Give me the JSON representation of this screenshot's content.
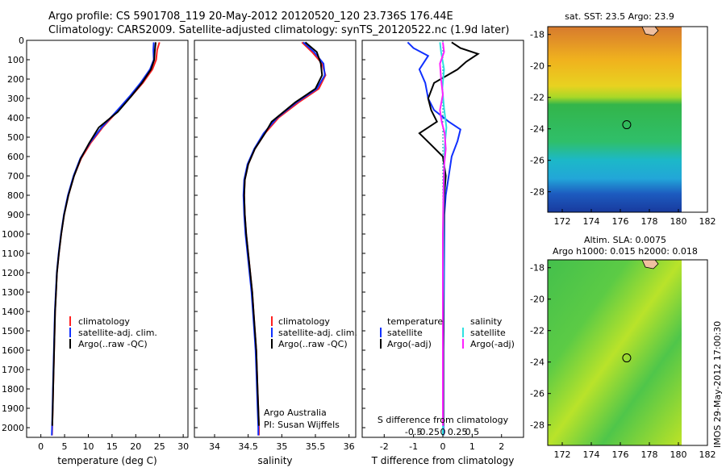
{
  "header": {
    "line1": "Argo profile: CS 5901708_119 20-May-2012 20120520_120 23.736S 176.44E",
    "line2": "Climatology: CARS2009. Satellite-adjusted climatology: synTS_20120522.nc (1.9d later)"
  },
  "side_label": "IMOS 29-May-2012 17:00:30",
  "colors": {
    "clim": "#ff2020",
    "sat": "#1030ff",
    "argo": "#000000",
    "sat_s": "#30e0e0",
    "argo_s": "#ff20ff",
    "zero": "#00a0a0"
  },
  "chart_data": [
    {
      "type": "line",
      "name": "temperature-panel",
      "xlabel": "temperature (deg C)",
      "ylabel": "",
      "xlim": [
        -3,
        31
      ],
      "ylim": [
        2050,
        0
      ],
      "xticks": [
        0,
        5,
        10,
        15,
        20,
        25,
        30
      ],
      "yticks": [
        0,
        100,
        200,
        300,
        400,
        500,
        600,
        700,
        800,
        900,
        1000,
        1100,
        1200,
        1300,
        1400,
        1500,
        1600,
        1700,
        1800,
        1900,
        2000
      ],
      "legend": {
        "placement": "lower-center",
        "entries": [
          "climatology",
          "satellite-adj. clim.",
          "Argo(..raw -QC)"
        ]
      },
      "series": [
        {
          "name": "climatology",
          "color": "#ff2020",
          "points": [
            [
              25.0,
              10
            ],
            [
              24.5,
              50
            ],
            [
              24.3,
              100
            ],
            [
              23.5,
              150
            ],
            [
              21.5,
              220
            ],
            [
              19.0,
              290
            ],
            [
              16.0,
              370
            ],
            [
              13.0,
              450
            ],
            [
              10.5,
              530
            ],
            [
              8.5,
              610
            ],
            [
              7.0,
              700
            ],
            [
              5.8,
              800
            ],
            [
              4.9,
              900
            ],
            [
              4.3,
              1000
            ],
            [
              3.8,
              1100
            ],
            [
              3.4,
              1200
            ],
            [
              3.2,
              1300
            ],
            [
              3.0,
              1400
            ],
            [
              2.9,
              1500
            ],
            [
              2.8,
              1600
            ],
            [
              2.7,
              1700
            ],
            [
              2.6,
              1800
            ],
            [
              2.5,
              1900
            ],
            [
              2.4,
              2000
            ],
            [
              2.35,
              2040
            ]
          ]
        },
        {
          "name": "satellite-adj. clim.",
          "color": "#1030ff",
          "points": [
            [
              23.8,
              10
            ],
            [
              23.7,
              50
            ],
            [
              23.8,
              100
            ],
            [
              23.0,
              150
            ],
            [
              21.0,
              220
            ],
            [
              18.7,
              290
            ],
            [
              15.8,
              370
            ],
            [
              12.8,
              450
            ],
            [
              10.3,
              530
            ],
            [
              8.3,
              610
            ],
            [
              6.9,
              700
            ],
            [
              5.7,
              800
            ],
            [
              4.85,
              900
            ],
            [
              4.25,
              1000
            ],
            [
              3.75,
              1100
            ],
            [
              3.35,
              1200
            ],
            [
              3.15,
              1300
            ],
            [
              2.95,
              1400
            ],
            [
              2.85,
              1500
            ],
            [
              2.75,
              1600
            ],
            [
              2.65,
              1700
            ],
            [
              2.55,
              1800
            ],
            [
              2.45,
              1900
            ],
            [
              2.35,
              2000
            ],
            [
              2.3,
              2040
            ]
          ]
        },
        {
          "name": "Argo(..raw -QC)",
          "color": "#000000",
          "points": [
            [
              24.2,
              10
            ],
            [
              24.0,
              60
            ],
            [
              23.9,
              100
            ],
            [
              23.2,
              150
            ],
            [
              21.3,
              220
            ],
            [
              19.0,
              290
            ],
            [
              16.2,
              370
            ],
            [
              12.2,
              450
            ],
            [
              10.2,
              530
            ],
            [
              8.4,
              610
            ],
            [
              7.0,
              700
            ],
            [
              5.8,
              800
            ],
            [
              4.9,
              900
            ],
            [
              4.3,
              1000
            ],
            [
              3.8,
              1100
            ],
            [
              3.4,
              1200
            ],
            [
              3.2,
              1300
            ],
            [
              3.0,
              1400
            ],
            [
              2.9,
              1500
            ],
            [
              2.8,
              1600
            ],
            [
              2.7,
              1700
            ],
            [
              2.6,
              1800
            ],
            [
              2.5,
              1900
            ],
            [
              2.4,
              1990
            ]
          ]
        }
      ]
    },
    {
      "type": "line",
      "name": "salinity-panel",
      "xlabel": "salinity",
      "xlim": [
        33.7,
        36.1
      ],
      "ylim": [
        2050,
        0
      ],
      "xticks": [
        34,
        34.5,
        35,
        35.5,
        36
      ],
      "legend": {
        "placement": "lower-center",
        "entries": [
          "climatology",
          "satellite-adj. clim.",
          "Argo(..raw -QC)"
        ]
      },
      "annotation": [
        "Argo Australia",
        "PI: Susan Wijffels"
      ],
      "series": [
        {
          "name": "climatology",
          "color": "#ff2020",
          "points": [
            [
              35.3,
              10
            ],
            [
              35.45,
              60
            ],
            [
              35.6,
              120
            ],
            [
              35.65,
              180
            ],
            [
              35.55,
              250
            ],
            [
              35.25,
              320
            ],
            [
              34.95,
              400
            ],
            [
              34.75,
              480
            ],
            [
              34.6,
              560
            ],
            [
              34.5,
              640
            ],
            [
              34.45,
              720
            ],
            [
              34.44,
              800
            ],
            [
              34.45,
              900
            ],
            [
              34.47,
              1000
            ],
            [
              34.5,
              1100
            ],
            [
              34.53,
              1200
            ],
            [
              34.56,
              1300
            ],
            [
              34.58,
              1400
            ],
            [
              34.6,
              1500
            ],
            [
              34.62,
              1600
            ],
            [
              34.63,
              1700
            ],
            [
              34.64,
              1800
            ],
            [
              34.65,
              1900
            ],
            [
              34.66,
              2000
            ],
            [
              34.66,
              2040
            ]
          ]
        },
        {
          "name": "satellite-adj. clim.",
          "color": "#1030ff",
          "points": [
            [
              35.32,
              10
            ],
            [
              35.48,
              60
            ],
            [
              35.62,
              120
            ],
            [
              35.64,
              180
            ],
            [
              35.52,
              250
            ],
            [
              35.22,
              320
            ],
            [
              34.93,
              400
            ],
            [
              34.73,
              480
            ],
            [
              34.59,
              560
            ],
            [
              34.49,
              640
            ],
            [
              34.44,
              720
            ],
            [
              34.43,
              800
            ],
            [
              34.44,
              900
            ],
            [
              34.46,
              1000
            ],
            [
              34.49,
              1100
            ],
            [
              34.52,
              1200
            ],
            [
              34.55,
              1300
            ],
            [
              34.57,
              1400
            ],
            [
              34.59,
              1500
            ],
            [
              34.61,
              1600
            ],
            [
              34.62,
              1700
            ],
            [
              34.63,
              1800
            ],
            [
              34.64,
              1900
            ],
            [
              34.65,
              2000
            ],
            [
              34.65,
              2040
            ]
          ]
        },
        {
          "name": "Argo(..raw -QC)",
          "color": "#000000",
          "points": [
            [
              35.35,
              10
            ],
            [
              35.52,
              60
            ],
            [
              35.58,
              120
            ],
            [
              35.6,
              180
            ],
            [
              35.5,
              250
            ],
            [
              35.2,
              320
            ],
            [
              34.85,
              420
            ],
            [
              34.75,
              480
            ],
            [
              34.6,
              560
            ],
            [
              34.5,
              640
            ],
            [
              34.45,
              720
            ],
            [
              34.44,
              800
            ],
            [
              34.45,
              900
            ],
            [
              34.47,
              1000
            ],
            [
              34.5,
              1100
            ],
            [
              34.53,
              1200
            ],
            [
              34.56,
              1300
            ],
            [
              34.58,
              1400
            ],
            [
              34.6,
              1500
            ],
            [
              34.62,
              1600
            ],
            [
              34.63,
              1700
            ],
            [
              34.64,
              1800
            ],
            [
              34.65,
              1900
            ],
            [
              34.66,
              1990
            ]
          ]
        }
      ]
    },
    {
      "type": "line",
      "name": "difference-panel",
      "xlabel": "T difference from climatology",
      "x2label": "S difference from climatology",
      "xlim": [
        -2.75,
        2.75
      ],
      "ylim": [
        2050,
        0
      ],
      "xticks": [
        -2,
        -1,
        0,
        1,
        2
      ],
      "x2ticks": [
        -0.5,
        -0.25,
        0,
        0.25,
        0.5
      ],
      "x2tick_labels": [
        "-0.5",
        "-0.25",
        "0",
        "0.25",
        "0.5"
      ],
      "legend": {
        "placement": "lower-center",
        "temperature_title": "temperature",
        "salinity_title": "salinity",
        "temperature_entries": [
          "satellite",
          "Argo(-adj)"
        ],
        "salinity_entries": [
          "satellite",
          "Argo(-adj)"
        ]
      },
      "series": [
        {
          "name": "T satellite",
          "color": "#1030ff",
          "points": [
            [
              -1.2,
              10
            ],
            [
              -1.0,
              40
            ],
            [
              -0.5,
              80
            ],
            [
              -0.8,
              150
            ],
            [
              -0.6,
              220
            ],
            [
              -0.5,
              300
            ],
            [
              -0.3,
              360
            ],
            [
              0.2,
              420
            ],
            [
              0.6,
              460
            ],
            [
              0.5,
              520
            ],
            [
              0.3,
              600
            ],
            [
              0.2,
              700
            ],
            [
              0.1,
              800
            ],
            [
              0.05,
              900
            ],
            [
              0.05,
              1000
            ],
            [
              0.04,
              1200
            ],
            [
              0.03,
              1400
            ],
            [
              0.02,
              1600
            ],
            [
              0.02,
              1800
            ],
            [
              0.02,
              2040
            ]
          ]
        },
        {
          "name": "T Argo(-adj)",
          "color": "#000000",
          "points": [
            [
              0.3,
              10
            ],
            [
              0.6,
              40
            ],
            [
              1.2,
              70
            ],
            [
              0.8,
              110
            ],
            [
              0.5,
              150
            ],
            [
              -0.3,
              220
            ],
            [
              -0.5,
              300
            ],
            [
              -0.4,
              360
            ],
            [
              -0.2,
              420
            ],
            [
              -0.8,
              480
            ],
            [
              -0.4,
              540
            ],
            [
              0.0,
              600
            ],
            [
              0.1,
              700
            ],
            [
              0.05,
              800
            ],
            [
              0.03,
              1000
            ],
            [
              0.02,
              1200
            ],
            [
              0.02,
              1400
            ],
            [
              0.01,
              1600
            ],
            [
              0.01,
              1800
            ],
            [
              0.01,
              1990
            ]
          ]
        },
        {
          "name": "S satellite",
          "color": "#30e0e0",
          "points": [
            [
              -0.05,
              10
            ],
            [
              -0.03,
              60
            ],
            [
              0.02,
              150
            ],
            [
              -0.01,
              250
            ],
            [
              0.02,
              350
            ],
            [
              0.06,
              450
            ],
            [
              0.03,
              550
            ],
            [
              0.02,
              700
            ],
            [
              0.01,
              900
            ],
            [
              0.01,
              1200
            ],
            [
              0.0,
              1500
            ],
            [
              0.0,
              1800
            ],
            [
              0.0,
              2040
            ]
          ]
        },
        {
          "name": "S Argo(-adj)",
          "color": "#ff20ff",
          "points": [
            [
              0.0,
              10
            ],
            [
              0.02,
              60
            ],
            [
              -0.05,
              120
            ],
            [
              -0.03,
              200
            ],
            [
              0.0,
              280
            ],
            [
              -0.05,
              360
            ],
            [
              -0.02,
              420
            ],
            [
              0.03,
              480
            ],
            [
              0.05,
              560
            ],
            [
              0.02,
              650
            ],
            [
              0.01,
              800
            ],
            [
              0.0,
              1000
            ],
            [
              0.0,
              1300
            ],
            [
              0.0,
              1600
            ],
            [
              0.0,
              1990
            ]
          ]
        }
      ]
    },
    {
      "type": "heatmap",
      "name": "sst-map",
      "title": "sat. SST: 23.5 Argo: 23.9",
      "xlim": [
        171,
        182
      ],
      "ylim": [
        -29.3,
        -17.5
      ],
      "xticks": [
        172,
        174,
        176,
        178,
        180,
        182
      ],
      "yticks": [
        -18,
        -20,
        -22,
        -24,
        -26,
        -28
      ],
      "marker": {
        "lon": 176.44,
        "lat": -23.736
      }
    },
    {
      "type": "heatmap",
      "name": "sla-map",
      "title": "Altim. SLA: 0.0075",
      "subtitle": "Argo h1000: 0.015 h2000: 0.018",
      "xlim": [
        171,
        182
      ],
      "ylim": [
        -29.3,
        -17.5
      ],
      "xticks": [
        172,
        174,
        176,
        178,
        180,
        182
      ],
      "yticks": [
        -18,
        -20,
        -22,
        -24,
        -26,
        -28
      ],
      "marker": {
        "lon": 176.44,
        "lat": -23.736
      }
    }
  ]
}
